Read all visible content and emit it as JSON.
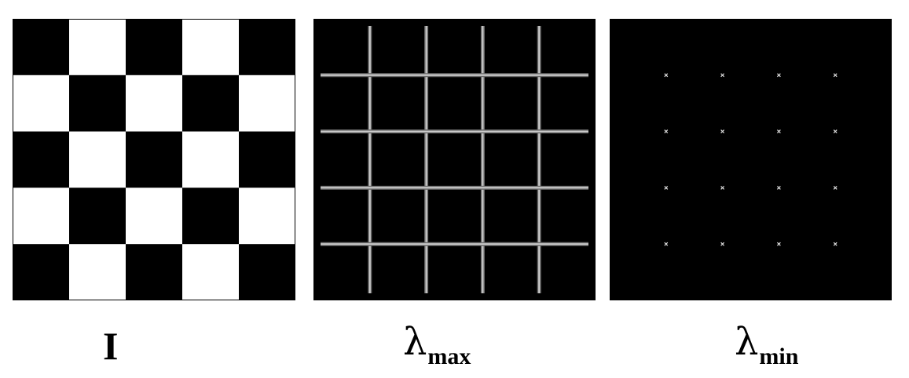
{
  "figure": {
    "panels": [
      {
        "id": "checkerboard",
        "caption": "I",
        "grid_size": 5
      },
      {
        "id": "lambda-max",
        "caption_symbol": "λ",
        "caption_subscript": "max"
      },
      {
        "id": "lambda-min",
        "caption_symbol": "λ",
        "caption_subscript": "min"
      }
    ],
    "colors": {
      "background": "#ffffff",
      "dark": "#000000",
      "light": "#ffffff",
      "edge_line": "#cfcfcf",
      "corner_point": "#dddddd"
    }
  }
}
